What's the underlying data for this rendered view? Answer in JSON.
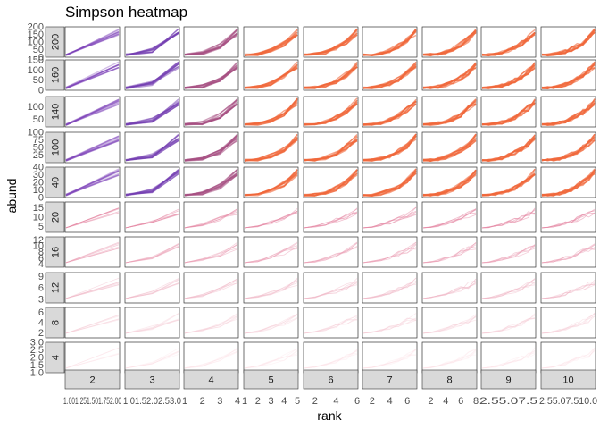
{
  "chart_data": {
    "type": "line",
    "title": "Simpson heatmap",
    "xlabel": "rank",
    "ylabel": "abund",
    "colors": {
      "low": "#fbe0e4",
      "mid_pink": "#e58aa6",
      "purple": "#7b3fb6",
      "blue_violet": "#4b2fd8",
      "orange": "#f0673a",
      "panel_border": "#333333",
      "strip_fill": "#d9d9d9"
    },
    "columns": [
      {
        "label": "2",
        "xmax": 2,
        "ticks": [
          "1.00",
          "1.25",
          "1.50",
          "1.75",
          "2.00"
        ],
        "tick_labels_shown": "1.001.251.501.752.00"
      },
      {
        "label": "3",
        "xmax": 3,
        "ticks": [
          "1.0",
          "1.5",
          "2.0",
          "2.5",
          "3.0"
        ],
        "tick_labels_shown": "1.01.52.02.53.0"
      },
      {
        "label": "4",
        "xmax": 4,
        "ticks": [
          "1",
          "2",
          "3",
          "4"
        ]
      },
      {
        "label": "5",
        "xmax": 5,
        "ticks": [
          "1",
          "2",
          "3",
          "4",
          "5"
        ]
      },
      {
        "label": "6",
        "xmax": 6,
        "ticks": [
          "2",
          "4",
          "6"
        ]
      },
      {
        "label": "7",
        "xmax": 7,
        "ticks": [
          "2",
          "4",
          "6"
        ]
      },
      {
        "label": "8",
        "xmax": 8,
        "ticks": [
          "2",
          "4",
          "6",
          "8"
        ]
      },
      {
        "label": "9",
        "xmax": 9,
        "ticks": [
          "2.5",
          "5.0",
          "7.5"
        ],
        "tick_labels_shown": "2.55.07.5"
      },
      {
        "label": "10",
        "xmax": 10,
        "ticks": [
          "2.5",
          "5.0",
          "7.5",
          "10.0"
        ],
        "tick_labels_shown": "2.55.07.510.0"
      }
    ],
    "rows": [
      {
        "label": "200",
        "ylim": [
          0,
          200
        ],
        "ticks": [
          "0",
          "50",
          "100",
          "150",
          "200"
        ]
      },
      {
        "label": "160",
        "ylim": [
          0,
          150
        ],
        "ticks": [
          "0",
          "50",
          "100",
          "150"
        ]
      },
      {
        "label": "140",
        "ylim": [
          20,
          140
        ],
        "ticks": [
          "50",
          "100"
        ]
      },
      {
        "label": "100",
        "ylim": [
          0,
          100
        ],
        "ticks": [
          "25",
          "50",
          "75",
          "100"
        ]
      },
      {
        "label": "40",
        "ylim": [
          0,
          40
        ],
        "ticks": [
          "0",
          "10",
          "20",
          "30",
          "40"
        ]
      },
      {
        "label": "20",
        "ylim": [
          2,
          18
        ],
        "ticks": [
          "5",
          "10",
          "15"
        ]
      },
      {
        "label": "16",
        "ylim": [
          3,
          13
        ],
        "ticks": [
          "4",
          "6",
          "8",
          "10",
          "12"
        ]
      },
      {
        "label": "12",
        "ylim": [
          2,
          10
        ],
        "ticks": [
          "3",
          "6",
          "9"
        ]
      },
      {
        "label": "8",
        "ylim": [
          1,
          7
        ],
        "ticks": [
          "2",
          "4",
          "6"
        ]
      },
      {
        "label": "4",
        "ylim": [
          1,
          3
        ],
        "ticks": [
          "1.0",
          "1.5",
          "2.0",
          "2.5",
          "3.0"
        ]
      }
    ],
    "grid": false,
    "legend": "none"
  }
}
